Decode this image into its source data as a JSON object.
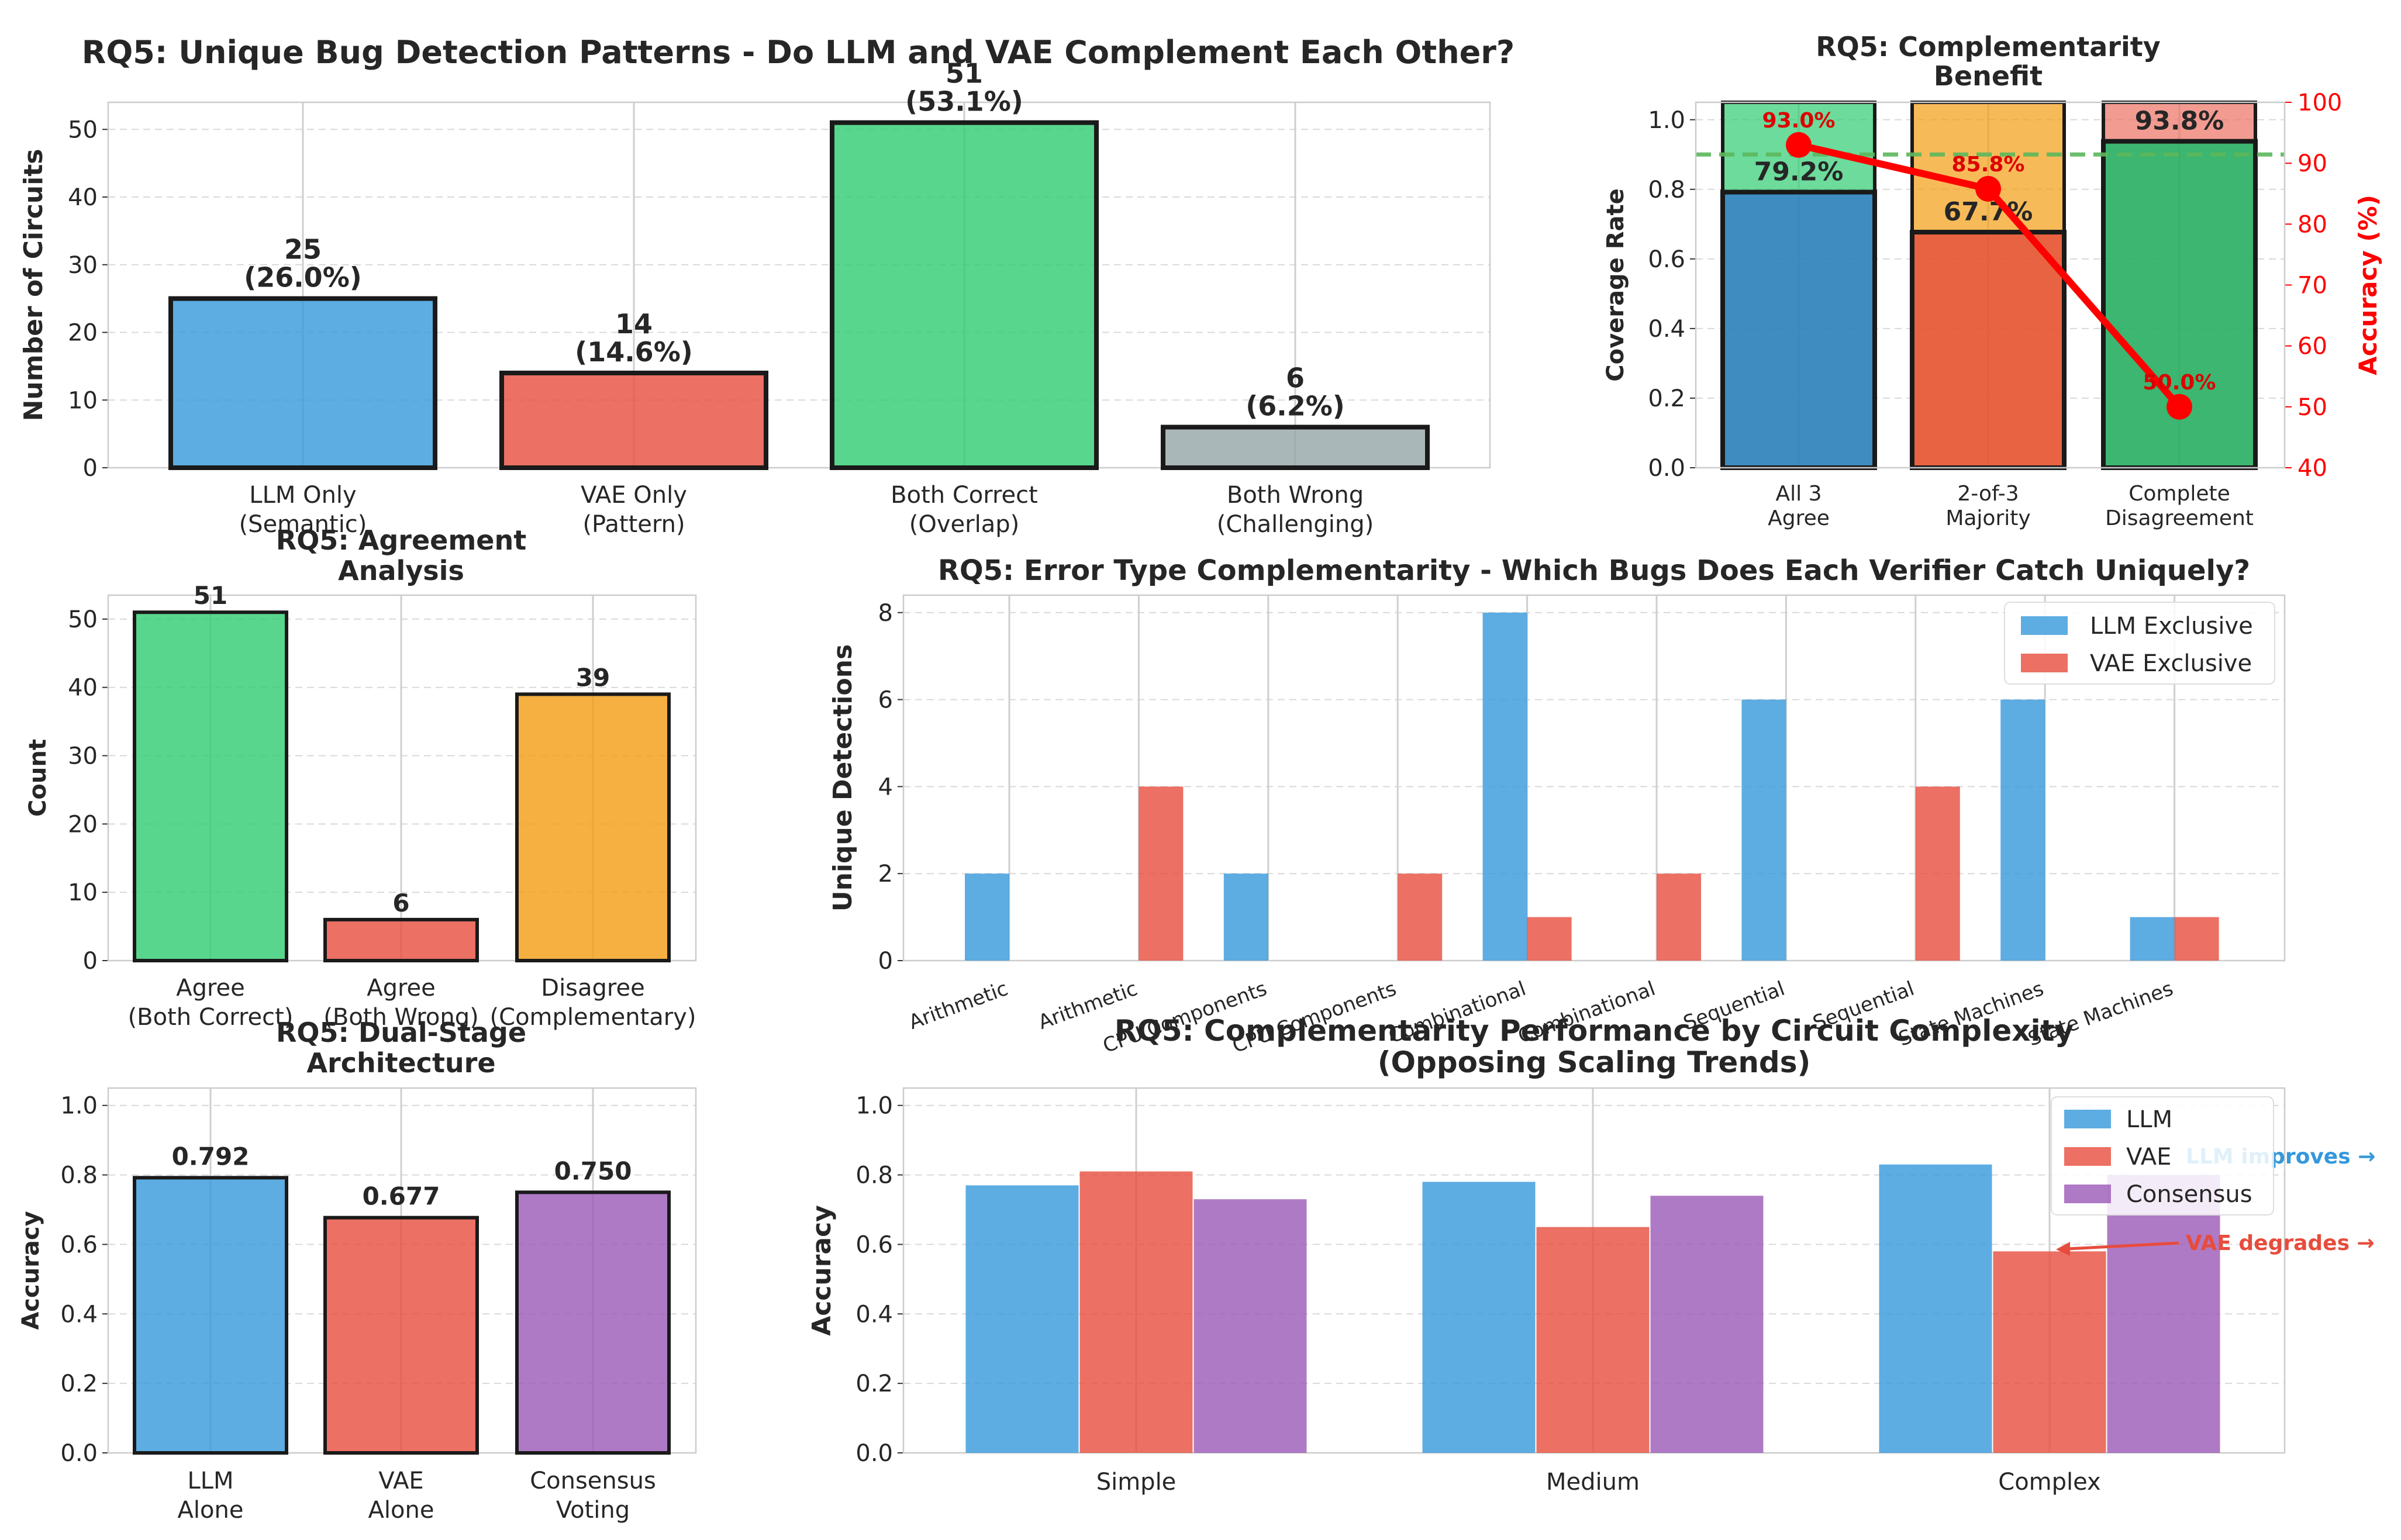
{
  "colors": {
    "blue": "#3498db",
    "red": "#e74c3c",
    "green": "#2ecc71",
    "gray": "#95a5a6",
    "orange": "#f39c12",
    "purple": "#9b59b6",
    "darkblue": "#2980b9",
    "darkgreen": "#27ae60",
    "orangered": "#e6522c",
    "salmon": "#ec7063",
    "acc": "#ff0000",
    "green_dash": "#5cb85c",
    "grid": "#d9d9d9"
  },
  "chart_data": [
    {
      "id": "unique",
      "type": "bar",
      "title": "RQ5: Unique Bug Detection Patterns - Do LLM and VAE Complement Each Other?",
      "xlabel": "",
      "ylabel": "Number of Circuits",
      "ylim": [
        0,
        54
      ],
      "yticks": [
        "0",
        "10",
        "20",
        "30",
        "40",
        "50"
      ],
      "grid": true,
      "categories": [
        [
          "LLM Only",
          "(Semantic)"
        ],
        [
          "VAE Only",
          "(Pattern)"
        ],
        [
          "Both Correct",
          "(Overlap)"
        ],
        [
          "Both Wrong",
          "(Challenging)"
        ]
      ],
      "values": [
        25,
        14,
        51,
        6
      ],
      "labels": [
        [
          "25",
          "(26.0%)"
        ],
        [
          "14",
          "(14.6%)"
        ],
        [
          "51",
          "(53.1%)"
        ],
        [
          "6",
          "(6.2%)"
        ]
      ]
    },
    {
      "id": "benefit",
      "type": "bar",
      "title": [
        "RQ5: Complementarity",
        "Benefit"
      ],
      "ylabel": "Coverage Rate",
      "y2label": "Accuracy (%)",
      "ylim": [
        0,
        1.05
      ],
      "y2lim": [
        40,
        100
      ],
      "yticks": [
        "0.0",
        "0.2",
        "0.4",
        "0.6",
        "0.8",
        "1.0"
      ],
      "y2ticks": [
        "40",
        "50",
        "60",
        "70",
        "80",
        "90",
        "100"
      ],
      "grid": true,
      "categories": [
        [
          "All 3",
          "Agree"
        ],
        [
          "2-of-3",
          "Majority"
        ],
        [
          "Complete",
          "Disagreement"
        ]
      ],
      "bottom_values": [
        0.792,
        0.677,
        0.938
      ],
      "bottom_labels": [
        "79.2%",
        "67.7%",
        "93.8%"
      ],
      "accuracy": [
        93.0,
        85.8,
        50.0
      ],
      "accuracy_labels": [
        "93.0%",
        "85.8%",
        "50.0%"
      ],
      "threshold": 0.9
    },
    {
      "id": "agreement",
      "type": "bar",
      "title": [
        "RQ5: Agreement",
        "Analysis"
      ],
      "ylabel": "Count",
      "ylim": [
        0,
        53.5
      ],
      "yticks": [
        "0",
        "10",
        "20",
        "30",
        "40",
        "50"
      ],
      "grid": true,
      "categories": [
        [
          "Agree",
          "(Both Correct)"
        ],
        [
          "Agree",
          "(Both Wrong)"
        ],
        [
          "Disagree",
          "(Complementary)"
        ]
      ],
      "values": [
        51,
        6,
        39
      ],
      "labels": [
        "51",
        "6",
        "39"
      ]
    },
    {
      "id": "errortype",
      "type": "bar",
      "title": "RQ5: Error Type Complementarity - Which Bugs Does Each Verifier Catch Uniquely?",
      "ylabel": "Unique Detections",
      "ylim": [
        0,
        8.4
      ],
      "yticks": [
        "0",
        "2",
        "4",
        "6",
        "8"
      ],
      "grid": true,
      "categories": [
        "Arithmetic",
        "Arithmetic",
        "CPU Components",
        "CPU Components",
        "Combinational",
        "Combinational",
        "Sequential",
        "Sequential",
        "State Machines",
        "State Machines"
      ],
      "series": [
        {
          "name": "LLM Exclusive",
          "values": [
            2,
            0,
            2,
            0,
            8,
            0,
            6,
            0,
            6,
            1
          ]
        },
        {
          "name": "VAE Exclusive",
          "values": [
            0,
            4,
            0,
            2,
            1,
            2,
            0,
            4,
            0,
            1
          ]
        }
      ],
      "legend": "top-right"
    },
    {
      "id": "dualstage",
      "type": "bar",
      "title": [
        "RQ5: Dual-Stage",
        "Architecture"
      ],
      "ylabel": "Accuracy",
      "ylim": [
        0,
        1.05
      ],
      "yticks": [
        "0.0",
        "0.2",
        "0.4",
        "0.6",
        "0.8",
        "1.0"
      ],
      "grid": true,
      "categories": [
        [
          "LLM",
          "Alone"
        ],
        [
          "VAE",
          "Alone"
        ],
        [
          "Consensus",
          "Voting"
        ]
      ],
      "values": [
        0.792,
        0.677,
        0.75
      ],
      "labels": [
        "0.792",
        "0.677",
        "0.750"
      ]
    },
    {
      "id": "complexity",
      "type": "bar",
      "title": [
        "RQ5: Complementarity Performance by Circuit Complexity",
        "(Opposing Scaling Trends)"
      ],
      "ylabel": "Accuracy",
      "ylim": [
        0,
        1.05
      ],
      "yticks": [
        "0.0",
        "0.2",
        "0.4",
        "0.6",
        "0.8",
        "1.0"
      ],
      "grid": true,
      "categories": [
        "Simple",
        "Medium",
        "Complex"
      ],
      "series": [
        {
          "name": "LLM",
          "values": [
            0.77,
            0.78,
            0.83
          ]
        },
        {
          "name": "VAE",
          "values": [
            0.81,
            0.65,
            0.58
          ]
        },
        {
          "name": "Consensus",
          "values": [
            0.73,
            0.74,
            0.8
          ]
        }
      ],
      "legend": "top-right",
      "annotations": [
        "LLM improves →",
        "VAE degrades →"
      ]
    }
  ]
}
